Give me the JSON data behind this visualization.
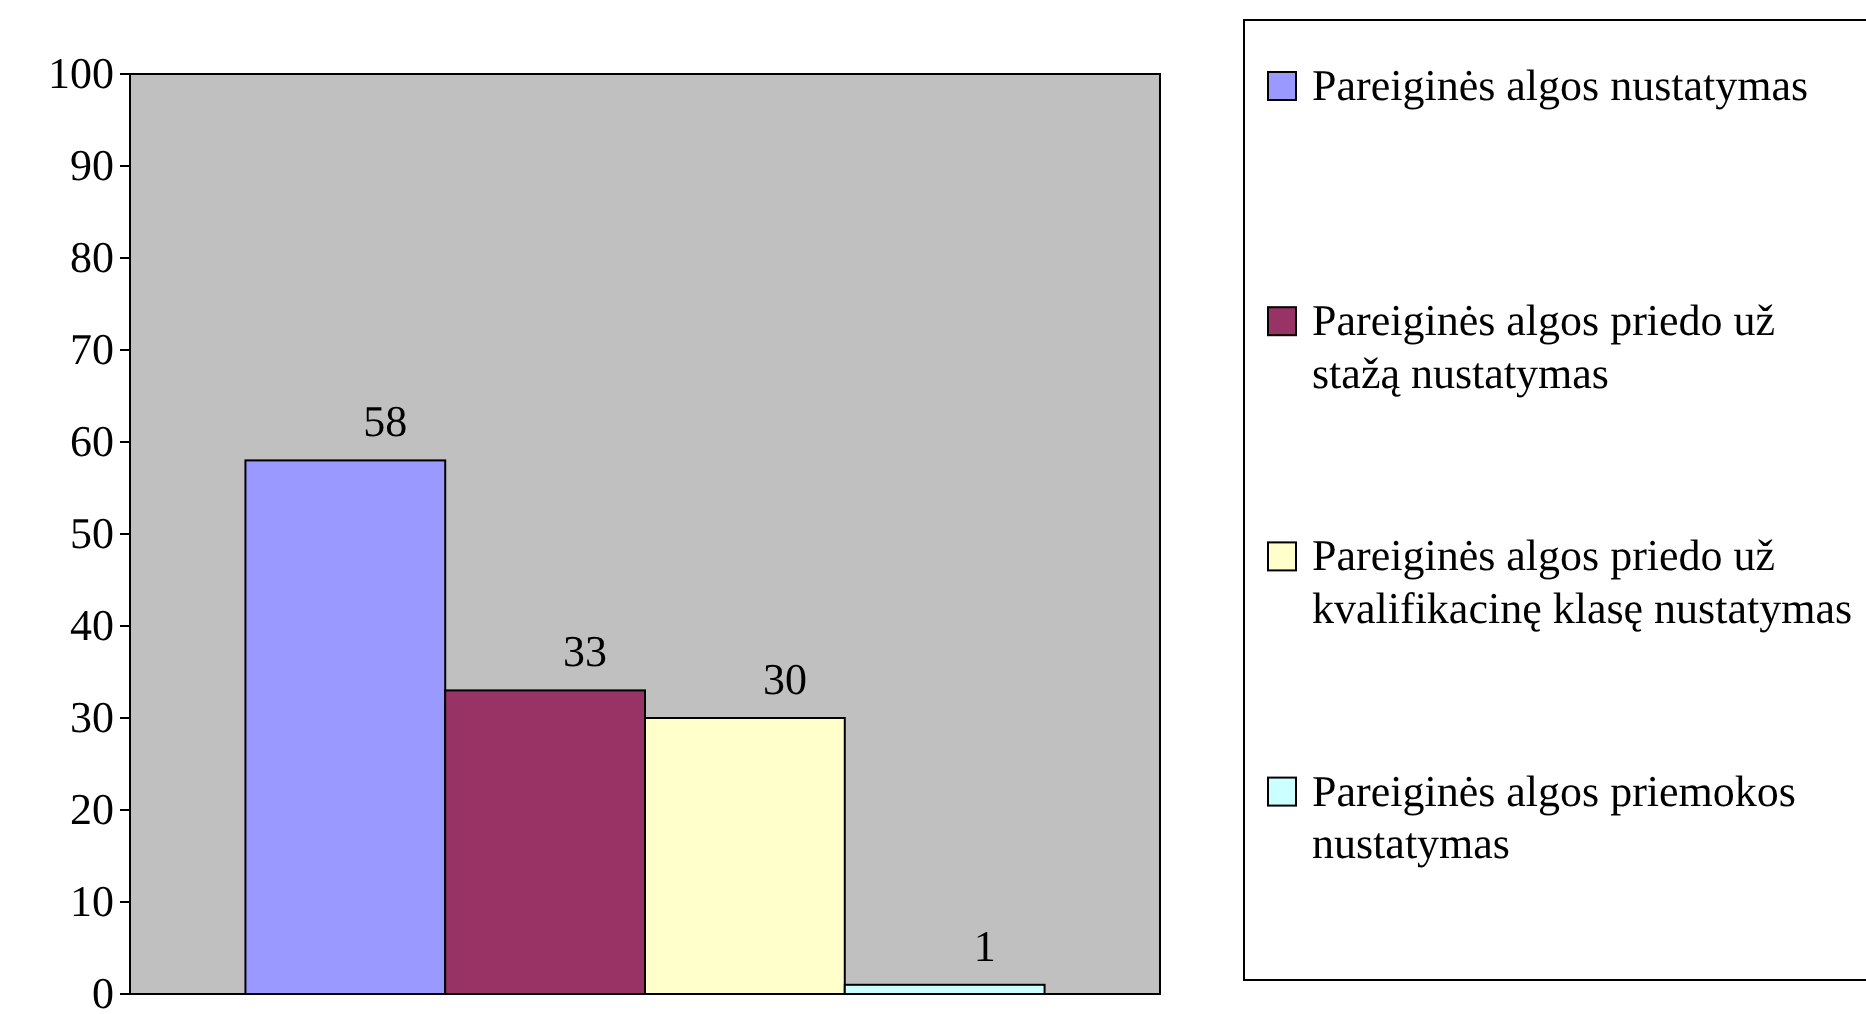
{
  "chart_data": {
    "type": "bar",
    "categories": [
      null
    ],
    "series": [
      {
        "name": "Pareiginės algos nustatymas",
        "color": "#9999ff",
        "values": [
          58
        ]
      },
      {
        "name": "Pareiginės algos priedo už stažą nustatymas",
        "color": "#993366",
        "values": [
          33
        ]
      },
      {
        "name": "Pareiginės algos priedo už kvalifikacinę klasę nustatymas",
        "color": "#ffffcc",
        "values": [
          30
        ]
      },
      {
        "name": "Pareiginės algos priemokos nustatymas",
        "color": "#ccffff",
        "values": [
          1
        ]
      }
    ],
    "ylim": [
      0,
      100
    ],
    "yticks": [
      0,
      10,
      20,
      30,
      40,
      50,
      60,
      70,
      80,
      90,
      100
    ],
    "data_labels": true,
    "legend": "right",
    "grid": false
  }
}
